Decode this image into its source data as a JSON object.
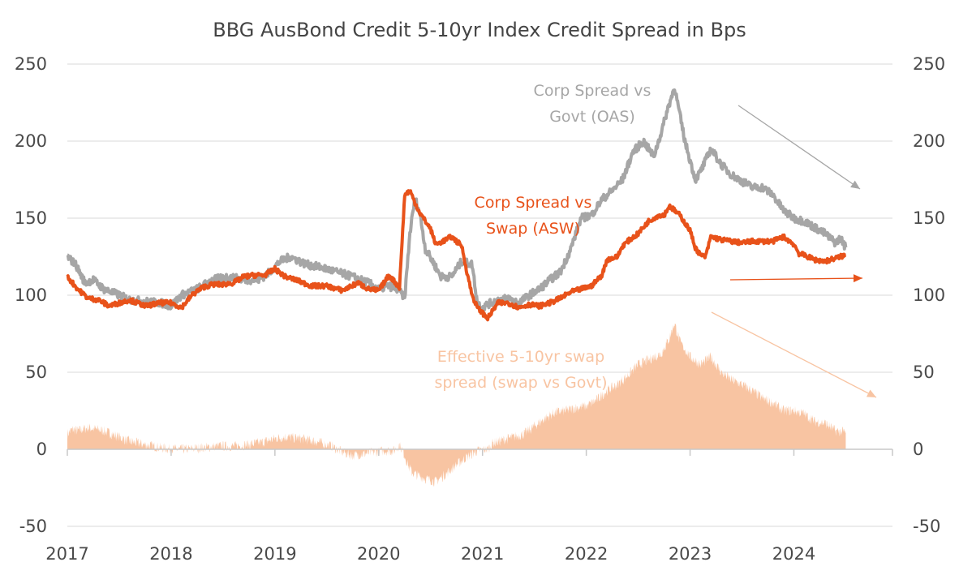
{
  "chart_data": {
    "type": "line",
    "title": "BBG AusBond Credit 5-10yr Index Credit Spread in Bps",
    "xlabel": "",
    "ylabel": "",
    "x_range": [
      2017.0,
      2024.95
    ],
    "ylim": [
      -50,
      250
    ],
    "yticks": [
      250,
      200,
      150,
      100,
      50,
      0,
      -50
    ],
    "yticks_labels": [
      "250",
      "200",
      "150",
      "100",
      "50",
      "0",
      "-50"
    ],
    "xticks": [
      2017,
      2018,
      2019,
      2020,
      2021,
      2022,
      2023,
      2024
    ],
    "xticks_labels": [
      "2017",
      "2018",
      "2019",
      "2020",
      "2021",
      "2022",
      "2023",
      "2024"
    ],
    "grid": "horizontal",
    "axes": "dual-y (identical scales)",
    "series": [
      {
        "name": "Corp Spread vs Govt (OAS)",
        "label_lines": [
          "Corp Spread vs",
          "Govt (OAS)"
        ],
        "color": "#a6a6a6",
        "style": "line",
        "x": [
          2017.0,
          2017.08,
          2017.17,
          2017.25,
          2017.35,
          2017.5,
          2017.6,
          2017.75,
          2017.9,
          2018.0,
          2018.1,
          2018.25,
          2018.4,
          2018.55,
          2018.7,
          2018.85,
          2018.95,
          2019.05,
          2019.15,
          2019.3,
          2019.45,
          2019.6,
          2019.75,
          2019.9,
          2020.0,
          2020.1,
          2020.2,
          2020.25,
          2020.3,
          2020.35,
          2020.4,
          2020.45,
          2020.52,
          2020.6,
          2020.7,
          2020.8,
          2020.9,
          2020.95,
          2021.0,
          2021.05,
          2021.15,
          2021.25,
          2021.35,
          2021.45,
          2021.55,
          2021.65,
          2021.75,
          2021.85,
          2021.95,
          2022.05,
          2022.15,
          2022.25,
          2022.35,
          2022.45,
          2022.55,
          2022.65,
          2022.72,
          2022.78,
          2022.85,
          2022.95,
          2023.05,
          2023.1,
          2023.2,
          2023.3,
          2023.4,
          2023.5,
          2023.6,
          2023.7,
          2023.8,
          2023.9,
          2024.0,
          2024.1,
          2024.2,
          2024.3,
          2024.4,
          2024.45,
          2024.5
        ],
        "y": [
          125,
          120,
          108,
          110,
          104,
          100,
          97,
          96,
          95,
          93,
          100,
          104,
          110,
          112,
          110,
          110,
          115,
          122,
          125,
          120,
          118,
          115,
          112,
          108,
          104,
          106,
          103,
          98,
          140,
          163,
          152,
          130,
          122,
          112,
          112,
          122,
          120,
          95,
          92,
          94,
          97,
          98,
          95,
          100,
          104,
          110,
          115,
          130,
          150,
          152,
          162,
          168,
          175,
          193,
          200,
          190,
          205,
          220,
          235,
          200,
          175,
          180,
          195,
          185,
          178,
          174,
          170,
          170,
          165,
          155,
          150,
          148,
          144,
          140,
          134,
          137,
          131
        ]
      },
      {
        "name": "Corp Spread vs Swap (ASW)",
        "label_lines": [
          "Corp Spread vs",
          "Swap (ASW)"
        ],
        "color": "#e8521a",
        "style": "line",
        "x": [
          2017.0,
          2017.1,
          2017.2,
          2017.3,
          2017.4,
          2017.5,
          2017.6,
          2017.75,
          2017.9,
          2018.0,
          2018.1,
          2018.2,
          2018.3,
          2018.4,
          2018.5,
          2018.6,
          2018.7,
          2018.8,
          2018.9,
          2019.0,
          2019.1,
          2019.2,
          2019.35,
          2019.5,
          2019.65,
          2019.8,
          2019.9,
          2020.0,
          2020.1,
          2020.2,
          2020.25,
          2020.3,
          2020.35,
          2020.4,
          2020.5,
          2020.55,
          2020.62,
          2020.7,
          2020.8,
          2020.85,
          2020.9,
          2020.95,
          2021.05,
          2021.15,
          2021.25,
          2021.35,
          2021.45,
          2021.55,
          2021.65,
          2021.75,
          2021.85,
          2021.95,
          2022.05,
          2022.15,
          2022.2,
          2022.3,
          2022.35,
          2022.4,
          2022.5,
          2022.6,
          2022.7,
          2022.75,
          2022.8,
          2022.9,
          2023.0,
          2023.05,
          2023.1,
          2023.15,
          2023.2,
          2023.3,
          2023.4,
          2023.5,
          2023.6,
          2023.7,
          2023.8,
          2023.9,
          2024.0,
          2024.05,
          2024.1,
          2024.2,
          2024.3,
          2024.4,
          2024.5
        ],
        "y": [
          112,
          104,
          98,
          97,
          93,
          95,
          97,
          93,
          95,
          95,
          92,
          100,
          105,
          107,
          107,
          108,
          112,
          113,
          113,
          117,
          112,
          110,
          106,
          106,
          103,
          108,
          104,
          103,
          113,
          105,
          165,
          168,
          160,
          153,
          143,
          133,
          135,
          138,
          132,
          115,
          100,
          92,
          85,
          95,
          95,
          92,
          94,
          93,
          95,
          98,
          102,
          104,
          106,
          113,
          123,
          125,
          132,
          135,
          140,
          148,
          152,
          152,
          158,
          152,
          142,
          131,
          126,
          125,
          138,
          136,
          135,
          134,
          135,
          135,
          135,
          138,
          133,
          127,
          126,
          123,
          122,
          124,
          126
        ]
      },
      {
        "name": "Effective 5-10yr swap spread (swap vs Govt)",
        "label_lines": [
          "Effective 5-10yr swap",
          "spread (swap vs Govt)"
        ],
        "color": "#f8c4a2",
        "style": "area",
        "x": [
          2017.0,
          2017.05,
          2017.1,
          2017.2,
          2017.35,
          2017.5,
          2017.6,
          2017.75,
          2017.9,
          2018.0,
          2018.15,
          2018.3,
          2018.45,
          2018.6,
          2018.75,
          2018.9,
          2019.0,
          2019.1,
          2019.25,
          2019.4,
          2019.55,
          2019.65,
          2019.75,
          2019.85,
          2019.95,
          2020.05,
          2020.15,
          2020.2,
          2020.25,
          2020.28,
          2020.32,
          2020.38,
          2020.45,
          2020.55,
          2020.65,
          2020.75,
          2020.85,
          2020.95,
          2021.05,
          2021.1,
          2021.2,
          2021.3,
          2021.4,
          2021.5,
          2021.6,
          2021.7,
          2021.8,
          2021.9,
          2022.0,
          2022.1,
          2022.2,
          2022.3,
          2022.4,
          2022.5,
          2022.6,
          2022.65,
          2022.72,
          2022.8,
          2022.85,
          2022.9,
          2023.0,
          2023.1,
          2023.2,
          2023.3,
          2023.4,
          2023.5,
          2023.6,
          2023.7,
          2023.8,
          2023.9,
          2024.0,
          2024.1,
          2024.2,
          2024.3,
          2024.4,
          2024.5
        ],
        "y": [
          10,
          13,
          12,
          14,
          12,
          8,
          5,
          3,
          1,
          0,
          0,
          1,
          2,
          2,
          3,
          5,
          7,
          8,
          7,
          5,
          2,
          -2,
          -4,
          -3,
          -2,
          -1,
          -1,
          3,
          -4,
          -10,
          -15,
          -17,
          -19,
          -21,
          -16,
          -10,
          -5,
          -1,
          0,
          4,
          6,
          8,
          10,
          15,
          20,
          24,
          25,
          27,
          28,
          32,
          38,
          42,
          48,
          55,
          58,
          60,
          62,
          72,
          82,
          70,
          60,
          55,
          60,
          50,
          45,
          42,
          38,
          33,
          30,
          25,
          25,
          23,
          18,
          17,
          12,
          11
        ]
      }
    ],
    "annotations": [
      {
        "type": "trend-arrow",
        "series": "Corp Spread vs Govt (OAS)",
        "direction": "down",
        "color": "#a6a6a6"
      },
      {
        "type": "trend-arrow",
        "series": "Corp Spread vs Swap (ASW)",
        "direction": "flat",
        "color": "#e8521a"
      },
      {
        "type": "trend-arrow",
        "series": "Effective 5-10yr swap spread (swap vs Govt)",
        "direction": "down",
        "color": "#f8c4a2"
      }
    ]
  }
}
